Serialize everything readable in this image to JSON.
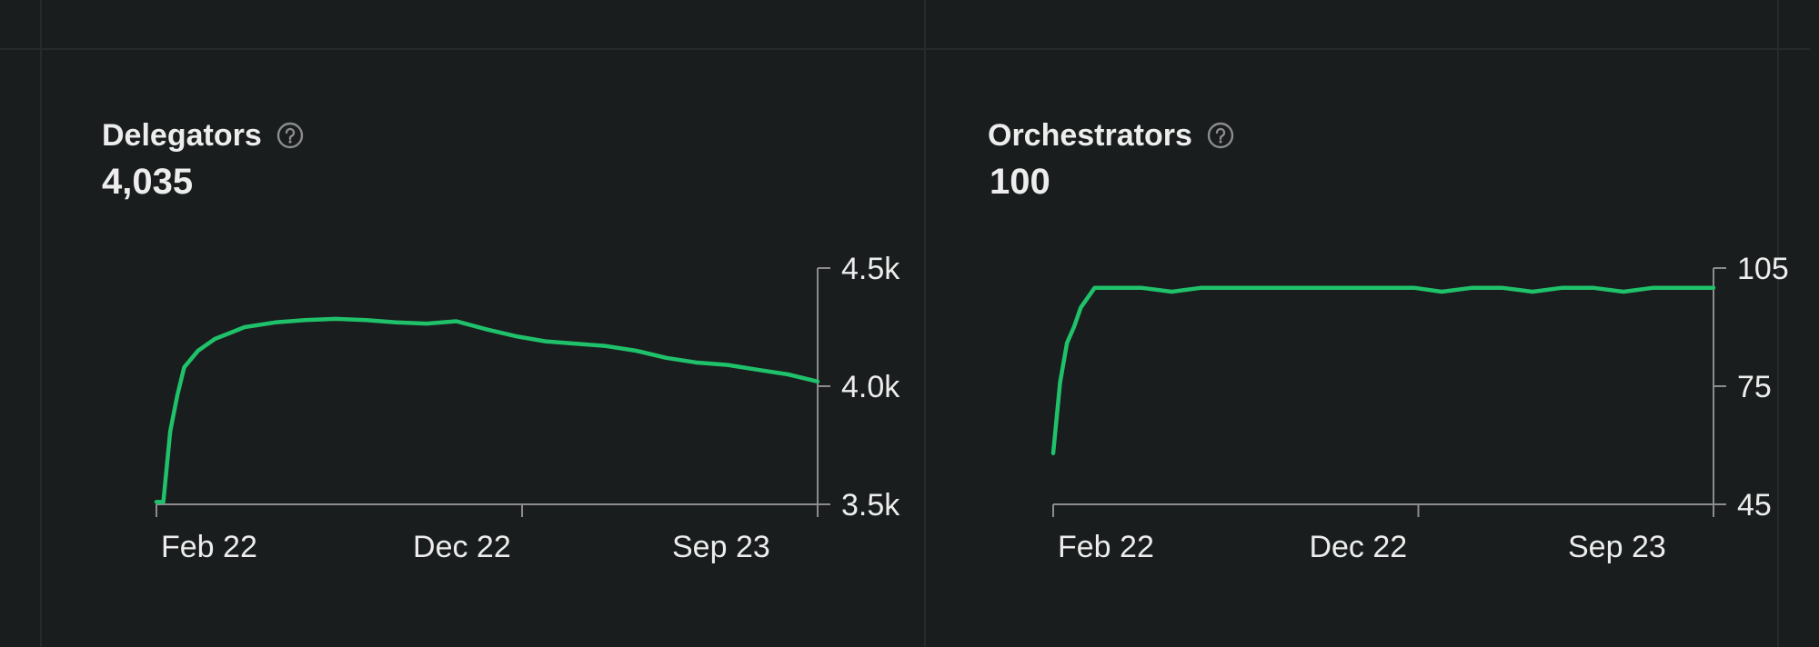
{
  "panels": [
    {
      "title": "Delegators",
      "value": "4,035",
      "help_icon": "question-circle-icon"
    },
    {
      "title": "Orchestrators",
      "value": "100",
      "help_icon": "question-circle-icon"
    }
  ],
  "colors": {
    "background": "#1a1d1d",
    "divider": "#262a2a",
    "line": "#1fc26b",
    "axis": "#8c8c8c",
    "text": "#ededed"
  },
  "chart_data": [
    {
      "type": "line",
      "title": "Delegators",
      "xlabel": "",
      "ylabel": "",
      "x_ticks": [
        "Feb 22",
        "Dec 22",
        "Sep 23"
      ],
      "y_ticks": [
        "4.5k",
        "4.0k",
        "3.5k"
      ],
      "y_tick_values": [
        4500,
        4000,
        3500
      ],
      "ylim": [
        3500,
        4500
      ],
      "x": [
        "2022-02-01",
        "2022-02-08",
        "2022-02-15",
        "2022-02-22",
        "2022-03-01",
        "2022-03-15",
        "2022-04-01",
        "2022-05-01",
        "2022-06-01",
        "2022-07-01",
        "2022-08-01",
        "2022-09-01",
        "2022-10-01",
        "2022-11-01",
        "2022-12-01",
        "2023-01-01",
        "2023-02-01",
        "2023-03-01",
        "2023-04-01",
        "2023-05-01",
        "2023-06-01",
        "2023-07-01",
        "2023-08-01",
        "2023-09-01",
        "2023-10-01",
        "2023-11-01",
        "2023-12-01"
      ],
      "series": [
        {
          "values": [
            3510,
            3510,
            3810,
            3960,
            4080,
            4150,
            4200,
            4250,
            4270,
            4280,
            4285,
            4280,
            4270,
            4265,
            4275,
            4240,
            4210,
            4190,
            4180,
            4170,
            4150,
            4120,
            4100,
            4090,
            4070,
            4050,
            4020
          ]
        }
      ]
    },
    {
      "type": "line",
      "title": "Orchestrators",
      "xlabel": "",
      "ylabel": "",
      "x_ticks": [
        "Feb 22",
        "Dec 22",
        "Sep 23"
      ],
      "y_ticks": [
        "105",
        "75",
        "45"
      ],
      "y_tick_values": [
        105,
        75,
        45
      ],
      "ylim": [
        45,
        105
      ],
      "x": [
        "2022-02-01",
        "2022-02-08",
        "2022-02-15",
        "2022-02-22",
        "2022-03-01",
        "2022-03-15",
        "2022-04-01",
        "2022-05-01",
        "2022-06-01",
        "2022-07-01",
        "2022-08-01",
        "2022-09-01",
        "2022-10-01",
        "2022-11-01",
        "2022-12-01",
        "2023-01-01",
        "2023-02-01",
        "2023-03-01",
        "2023-04-01",
        "2023-05-01",
        "2023-06-01",
        "2023-07-01",
        "2023-08-01",
        "2023-09-01",
        "2023-10-01",
        "2023-11-01",
        "2023-12-01"
      ],
      "series": [
        {
          "values": [
            58,
            76,
            86,
            90,
            95,
            100,
            100,
            100,
            99,
            100,
            100,
            100,
            100,
            100,
            100,
            100,
            100,
            99,
            100,
            100,
            99,
            100,
            100,
            99,
            100,
            100,
            100
          ]
        }
      ]
    }
  ]
}
